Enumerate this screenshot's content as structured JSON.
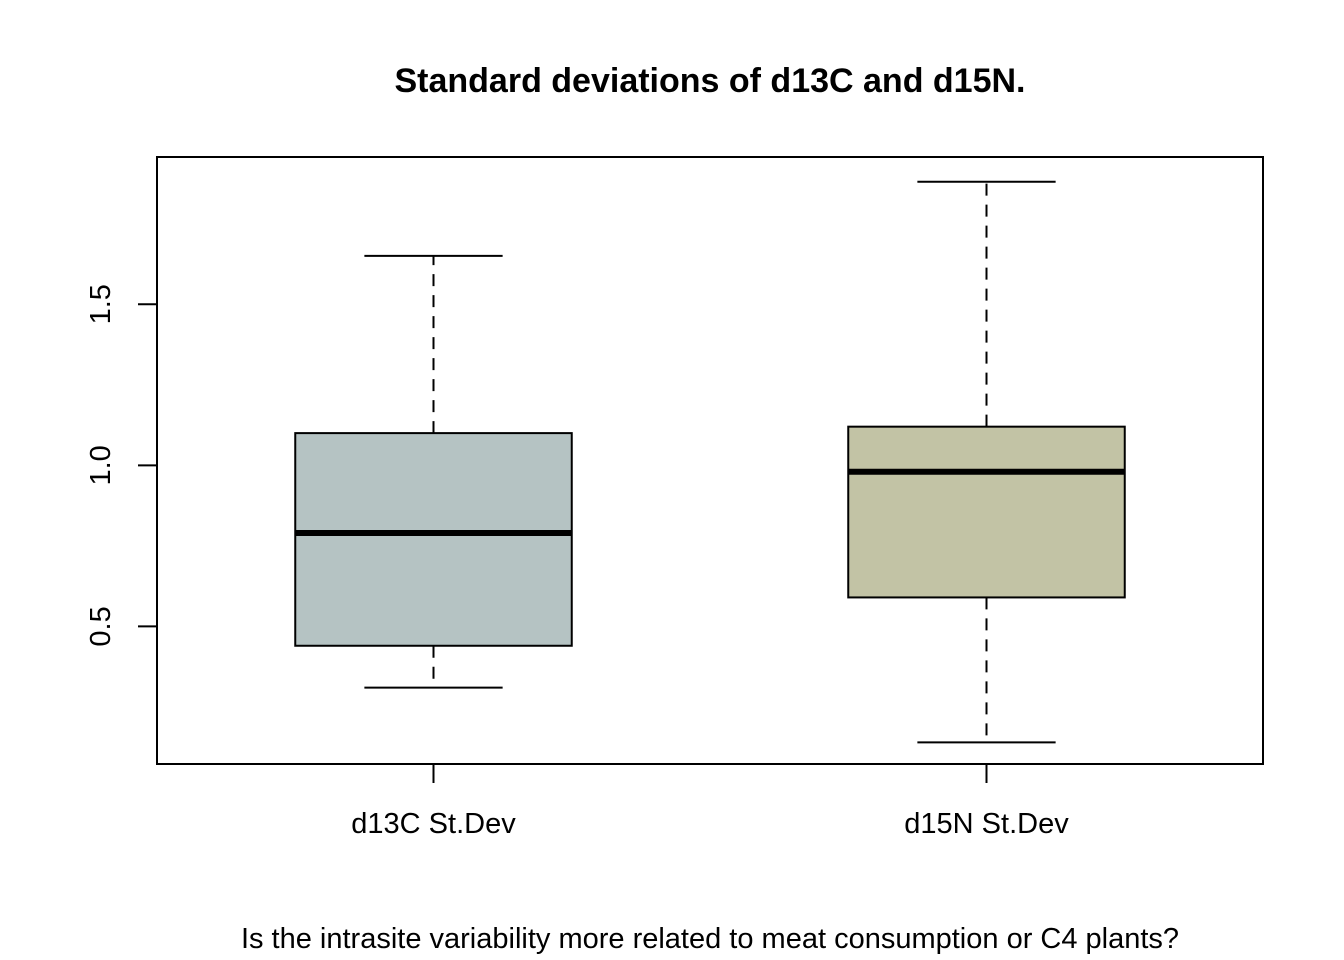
{
  "chart_data": {
    "type": "boxplot",
    "title": "Standard deviations of d13C and d15N.",
    "xlabel": "Is the intrasite variability more related to meat consumption or C4 plants?",
    "ylabel": "",
    "categories": [
      "d13C St.Dev",
      "d15N St.Dev"
    ],
    "boxes": [
      {
        "name": "d13C St.Dev",
        "whisker_low": 0.31,
        "q1": 0.44,
        "median": 0.79,
        "q3": 1.1,
        "whisker_high": 1.65,
        "color": "#b5c3c3"
      },
      {
        "name": "d15N St.Dev",
        "whisker_low": 0.14,
        "q1": 0.59,
        "median": 0.98,
        "q3": 1.12,
        "whisker_high": 1.88,
        "color": "#c2c3a5"
      }
    ],
    "yticks": [
      0.5,
      1.0,
      1.5
    ],
    "ytick_labels": [
      "0.5",
      "1.0",
      "1.5"
    ],
    "ylim": [
      0.073,
      1.957
    ],
    "grid": false,
    "legend": "none"
  }
}
